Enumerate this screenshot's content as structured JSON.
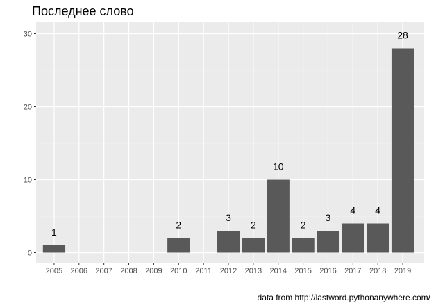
{
  "chart_data": {
    "type": "bar",
    "title": "Последнее слово",
    "caption": "data from http://lastword.pythonanywhere.com/",
    "xlabel": "",
    "ylabel": "",
    "categories": [
      "2005",
      "2006",
      "2007",
      "2008",
      "2009",
      "2010",
      "2011",
      "2012",
      "2013",
      "2014",
      "2015",
      "2016",
      "2017",
      "2018",
      "2019"
    ],
    "values": [
      1,
      0,
      0,
      0,
      0,
      2,
      0,
      3,
      2,
      10,
      2,
      3,
      4,
      4,
      28
    ],
    "data_labels": [
      "1",
      "",
      "",
      "",
      "",
      "2",
      "",
      "3",
      "2",
      "10",
      "2",
      "3",
      "4",
      "4",
      "28"
    ],
    "ylim": [
      0,
      30
    ],
    "yticks": [
      0,
      10,
      20,
      30
    ],
    "grid": true,
    "legend": "none",
    "colors": {
      "bar": "#595959",
      "panel": "#ebebeb",
      "grid_major": "#ffffff",
      "grid_minor": "#f5f5f5"
    }
  }
}
